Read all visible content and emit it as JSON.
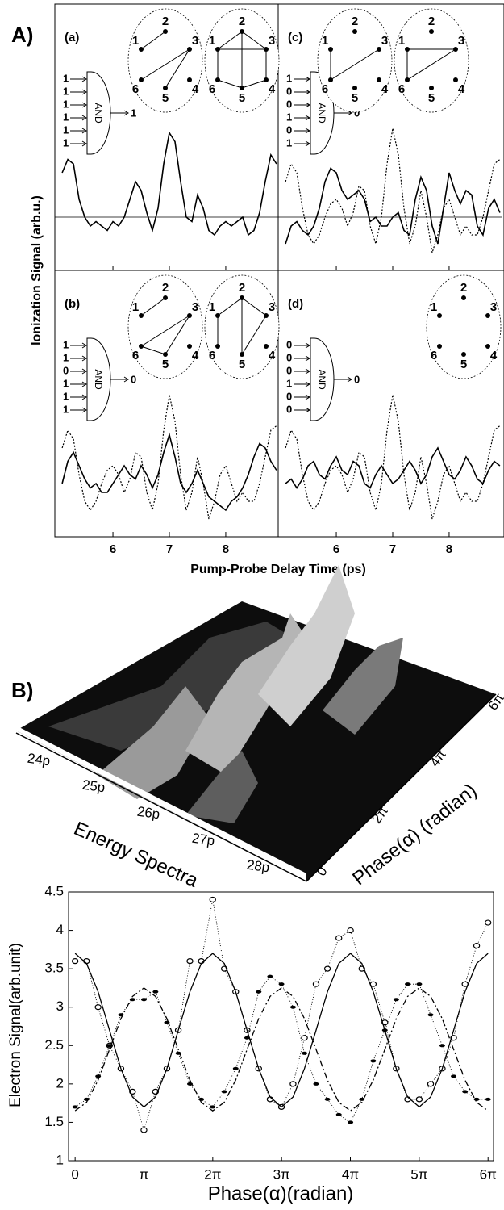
{
  "figure_A": {
    "label": "A)",
    "y_label": "Ionization Signal (arb.u.)",
    "x_label": "Pump-Probe Delay Time (ps)",
    "xlim": [
      4.97,
      8.93
    ],
    "ylim": [
      -0.6,
      2.4
    ],
    "xticks": [
      6,
      7,
      8
    ],
    "gate_label": "AND",
    "node_labels": [
      "1",
      "2",
      "3",
      "4",
      "5",
      "6"
    ],
    "x": [
      5.1,
      5.2,
      5.3,
      5.4,
      5.5,
      5.6,
      5.7,
      5.8,
      5.9,
      6.0,
      6.1,
      6.2,
      6.3,
      6.4,
      6.5,
      6.6,
      6.7,
      6.8,
      6.9,
      7.0,
      7.1,
      7.2,
      7.3,
      7.4,
      7.5,
      7.6,
      7.7,
      7.8,
      7.9,
      8.0,
      8.1,
      8.2,
      8.3,
      8.4,
      8.5,
      8.6,
      8.7,
      8.8,
      8.9
    ],
    "panels": [
      {
        "tag": "(a)",
        "inputs": [
          1,
          1,
          1,
          1,
          1,
          1
        ],
        "output": 1,
        "zero_line": true,
        "graphs": [
          [
            [
              1,
              2
            ],
            [
              3,
              6
            ],
            [
              3,
              5
            ]
          ],
          [
            [
              1,
              2
            ],
            [
              2,
              3
            ],
            [
              3,
              4
            ],
            [
              4,
              5
            ],
            [
              5,
              6
            ],
            [
              6,
              1
            ],
            [
              2,
              5
            ],
            [
              1,
              3
            ]
          ]
        ],
        "series": [
          {
            "style": "solid",
            "values": [
              0.5,
              0.65,
              0.6,
              0.2,
              0.0,
              -0.1,
              -0.05,
              -0.1,
              -0.15,
              -0.05,
              -0.1,
              0.0,
              0.2,
              0.4,
              0.3,
              0.05,
              -0.15,
              0.1,
              0.6,
              0.95,
              0.85,
              0.4,
              0.0,
              -0.05,
              0.25,
              0.1,
              -0.15,
              -0.2,
              -0.1,
              -0.05,
              -0.1,
              -0.05,
              0.0,
              -0.2,
              -0.15,
              0.05,
              0.4,
              0.7,
              0.6
            ]
          }
        ]
      },
      {
        "tag": "(b)",
        "inputs": [
          1,
          1,
          0,
          1,
          1,
          1
        ],
        "output": 0,
        "zero_line": false,
        "graphs": [
          [
            [
              1,
              2
            ],
            [
              3,
              6
            ],
            [
              3,
              5
            ],
            [
              6,
              5
            ]
          ],
          [
            [
              1,
              2
            ],
            [
              2,
              3
            ],
            [
              1,
              6
            ],
            [
              2,
              5
            ],
            [
              3,
              5
            ]
          ]
        ],
        "series": [
          {
            "style": "dotted",
            "values": [
              0.4,
              0.6,
              0.5,
              0.1,
              -0.2,
              -0.3,
              -0.2,
              0.0,
              0.15,
              0.2,
              0.1,
              -0.1,
              0.05,
              0.35,
              0.3,
              -0.1,
              -0.3,
              0.0,
              0.6,
              1.0,
              0.7,
              0.1,
              -0.3,
              -0.1,
              0.3,
              0.0,
              -0.4,
              -0.2,
              0.1,
              0.2,
              0.0,
              -0.2,
              -0.1,
              -0.2,
              -0.2,
              0.0,
              0.3,
              0.6,
              0.65
            ]
          },
          {
            "style": "solid",
            "values": [
              0.0,
              0.25,
              0.35,
              0.2,
              0.05,
              -0.05,
              0.0,
              -0.1,
              -0.1,
              0.0,
              0.1,
              0.2,
              0.1,
              0.05,
              0.2,
              0.1,
              -0.05,
              0.1,
              0.35,
              0.55,
              0.3,
              0.0,
              -0.1,
              0.0,
              0.15,
              0.0,
              -0.15,
              -0.2,
              -0.25,
              -0.3,
              -0.2,
              -0.15,
              -0.05,
              0.1,
              0.3,
              0.45,
              0.4,
              0.25,
              0.15
            ]
          }
        ]
      },
      {
        "tag": "(c)",
        "inputs": [
          1,
          0,
          0,
          1,
          0,
          1
        ],
        "output": 0,
        "zero_line": true,
        "graphs": [
          [
            [
              1,
              6
            ],
            [
              3,
              6
            ]
          ],
          [
            [
              1,
              3
            ],
            [
              1,
              6
            ],
            [
              3,
              6
            ]
          ]
        ],
        "series": [
          {
            "style": "dotted",
            "values": [
              0.4,
              0.6,
              0.5,
              0.1,
              -0.2,
              -0.3,
              -0.2,
              0.0,
              0.15,
              0.2,
              0.1,
              -0.1,
              0.05,
              0.35,
              0.3,
              -0.1,
              -0.3,
              0.0,
              0.6,
              1.0,
              0.7,
              0.1,
              -0.3,
              -0.1,
              0.3,
              0.0,
              -0.4,
              -0.2,
              0.1,
              0.2,
              0.0,
              -0.2,
              -0.1,
              -0.2,
              -0.2,
              0.0,
              0.3,
              0.6,
              0.65
            ]
          },
          {
            "style": "solid",
            "values": [
              -0.3,
              -0.1,
              -0.05,
              -0.15,
              -0.2,
              -0.1,
              0.1,
              0.4,
              0.55,
              0.5,
              0.3,
              0.2,
              0.25,
              0.3,
              0.2,
              -0.05,
              0.0,
              -0.1,
              -0.1,
              0.0,
              0.05,
              -0.15,
              -0.2,
              0.2,
              0.45,
              0.3,
              -0.1,
              -0.3,
              0.1,
              0.5,
              0.3,
              0.15,
              0.3,
              0.25,
              -0.1,
              -0.2,
              0.1,
              0.2,
              0.05
            ]
          }
        ]
      },
      {
        "tag": "(d)",
        "inputs": [
          0,
          0,
          0,
          1,
          0,
          0
        ],
        "output": 0,
        "zero_line": false,
        "graphs": [
          []
        ],
        "series": [
          {
            "style": "dotted",
            "values": [
              0.4,
              0.6,
              0.5,
              0.1,
              -0.2,
              -0.3,
              -0.2,
              0.0,
              0.15,
              0.2,
              0.1,
              -0.1,
              0.05,
              0.35,
              0.3,
              -0.1,
              -0.3,
              0.0,
              0.6,
              1.0,
              0.7,
              0.1,
              -0.3,
              -0.1,
              0.3,
              0.0,
              -0.4,
              -0.2,
              0.1,
              0.2,
              0.0,
              -0.2,
              -0.1,
              -0.2,
              -0.2,
              0.0,
              0.3,
              0.6,
              0.65
            ]
          },
          {
            "style": "solid",
            "values": [
              0.0,
              0.05,
              -0.05,
              0.05,
              0.2,
              0.25,
              0.1,
              0.05,
              0.2,
              0.3,
              0.15,
              0.1,
              0.25,
              0.2,
              0.0,
              -0.05,
              0.1,
              0.2,
              0.1,
              0.0,
              0.05,
              0.15,
              0.25,
              0.15,
              0.0,
              0.1,
              0.3,
              0.4,
              0.25,
              0.1,
              0.05,
              0.15,
              0.3,
              0.2,
              0.05,
              0.0,
              0.15,
              0.25,
              0.2
            ]
          }
        ]
      }
    ]
  },
  "figure_B": {
    "label": "B)",
    "energy_ticks": [
      "24p",
      "25p",
      "26p",
      "27p",
      "28p"
    ],
    "energy_label": "Energy Spectra",
    "phase_ticks": [
      "0",
      "2π",
      "4π",
      "6π"
    ],
    "phase_label": "Phase(α) (radian)"
  },
  "chart_data": {
    "type": "line",
    "x_label": "Phase(α)(radian)",
    "y_label": "Electron Signal(arb.unit)",
    "xlim": [
      -0.3,
      19.1
    ],
    "ylim": [
      1,
      4.5
    ],
    "xticks": [
      0,
      {
        "value": 3.1416,
        "label": "π"
      },
      {
        "value": 6.2832,
        "label": "2π"
      },
      {
        "value": 9.4248,
        "label": "3π"
      },
      {
        "value": 12.566,
        "label": "4π"
      },
      {
        "value": 15.708,
        "label": "5π"
      },
      {
        "value": 18.85,
        "label": "6π"
      }
    ],
    "yticks": [
      1,
      1.5,
      2,
      2.5,
      3,
      3.5,
      4,
      4.5
    ],
    "x": [
      0,
      0.52,
      1.05,
      1.57,
      2.09,
      2.62,
      3.14,
      3.67,
      4.19,
      4.71,
      5.24,
      5.76,
      6.28,
      6.81,
      7.33,
      7.85,
      8.38,
      8.9,
      9.42,
      9.95,
      10.47,
      11.0,
      11.52,
      12.04,
      12.57,
      13.09,
      13.61,
      14.14,
      14.66,
      15.18,
      15.71,
      16.23,
      16.76,
      17.28,
      17.8,
      18.33,
      18.85
    ],
    "series": [
      {
        "style": "open-circle",
        "values": [
          3.6,
          3.6,
          3.0,
          2.5,
          2.2,
          1.9,
          1.4,
          1.9,
          2.2,
          2.7,
          3.6,
          3.6,
          4.4,
          3.5,
          3.2,
          2.7,
          2.2,
          1.8,
          1.7,
          2.0,
          2.6,
          3.3,
          3.5,
          3.9,
          4.0,
          3.5,
          3.3,
          2.8,
          2.2,
          1.8,
          1.8,
          2.0,
          2.2,
          2.6,
          3.3,
          3.8,
          4.1
        ]
      },
      {
        "style": "filled-dot",
        "values": [
          1.7,
          1.8,
          2.1,
          2.5,
          2.9,
          3.1,
          3.1,
          3.2,
          2.8,
          2.4,
          2.0,
          1.8,
          1.7,
          1.9,
          2.2,
          2.6,
          3.2,
          3.4,
          3.3,
          3.0,
          2.4,
          2.0,
          1.8,
          1.6,
          1.5,
          1.8,
          2.3,
          2.7,
          3.1,
          3.3,
          3.3,
          2.9,
          2.5,
          2.1,
          1.9,
          1.8,
          1.8
        ]
      },
      {
        "style": "solid",
        "values": [
          3.7,
          3.57,
          3.2,
          2.7,
          2.2,
          1.83,
          1.7,
          1.83,
          2.2,
          2.7,
          3.2,
          3.57,
          3.7,
          3.57,
          3.2,
          2.7,
          2.2,
          1.83,
          1.7,
          1.83,
          2.2,
          2.7,
          3.2,
          3.57,
          3.7,
          3.57,
          3.2,
          2.7,
          2.2,
          1.83,
          1.7,
          1.83,
          2.2,
          2.7,
          3.2,
          3.57,
          3.7
        ]
      },
      {
        "style": "dash-dot",
        "values": [
          1.65,
          1.76,
          2.05,
          2.45,
          2.85,
          3.14,
          3.25,
          3.14,
          2.85,
          2.45,
          2.05,
          1.76,
          1.65,
          1.76,
          2.05,
          2.45,
          2.85,
          3.14,
          3.25,
          3.14,
          2.85,
          2.45,
          2.05,
          1.76,
          1.65,
          1.76,
          2.05,
          2.45,
          2.85,
          3.14,
          3.25,
          3.14,
          2.85,
          2.45,
          2.05,
          1.76,
          1.65
        ]
      }
    ]
  }
}
